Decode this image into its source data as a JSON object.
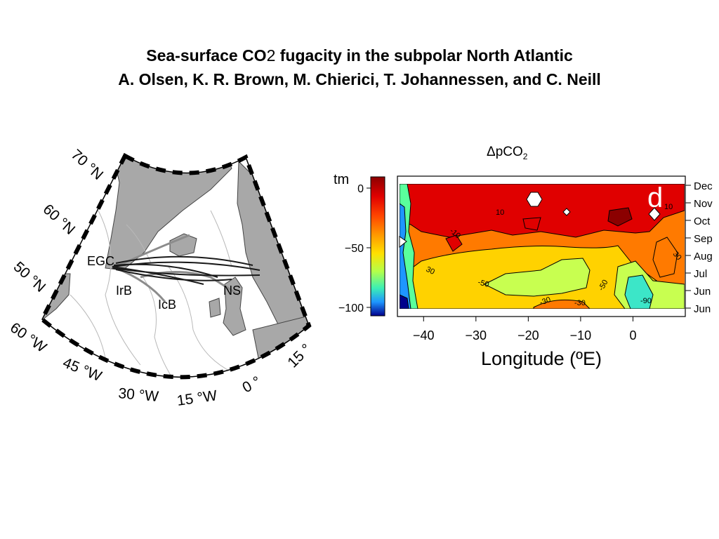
{
  "slide": {
    "title_line1_a": "Sea-surface CO",
    "title_line1_sub": "2",
    "title_line1_b": " fugacity in the subpolar North Atlantic",
    "title_line2": "A. Olsen, K. R. Brown, M. Chierici, T. Johannessen, and C. Neill"
  },
  "map": {
    "lat_labels": [
      "70 °N",
      "60 °N",
      "50 °N"
    ],
    "lon_labels": [
      "60 °W",
      "45 °W",
      "30 °W",
      "15 °W",
      "0 °",
      "15 °"
    ],
    "region_labels": [
      "EGC",
      "IrB",
      "IcB",
      "NS"
    ]
  },
  "plot": {
    "title": "ΔpCO",
    "title_sub": "2",
    "panel_letter": "d",
    "colorbar_unit": "tm",
    "colorbar_ticks": [
      {
        "value": 0,
        "label": "0"
      },
      {
        "value": -50,
        "label": "−50"
      },
      {
        "value": -100,
        "label": "−100"
      }
    ],
    "colors": [
      "#8b0000",
      "#d40000",
      "#ff2a00",
      "#ff7a00",
      "#ffc400",
      "#c8ff3c",
      "#5aff9c",
      "#28c8ff",
      "#1464ff",
      "#00008c"
    ],
    "months": [
      "Dec",
      "Nov",
      "Oct",
      "Sep",
      "Aug",
      "Jul",
      "Jun",
      "Jun"
    ],
    "xlabel": "Longitude (ºE)",
    "xlim": [
      -45,
      10
    ],
    "x_ticks": [
      -40,
      -30,
      -20,
      -10,
      0
    ],
    "contour_labels": [
      "10",
      "10",
      "-10",
      "30",
      "-50",
      "-30",
      "-30",
      "-50",
      "-90",
      "30"
    ]
  }
}
